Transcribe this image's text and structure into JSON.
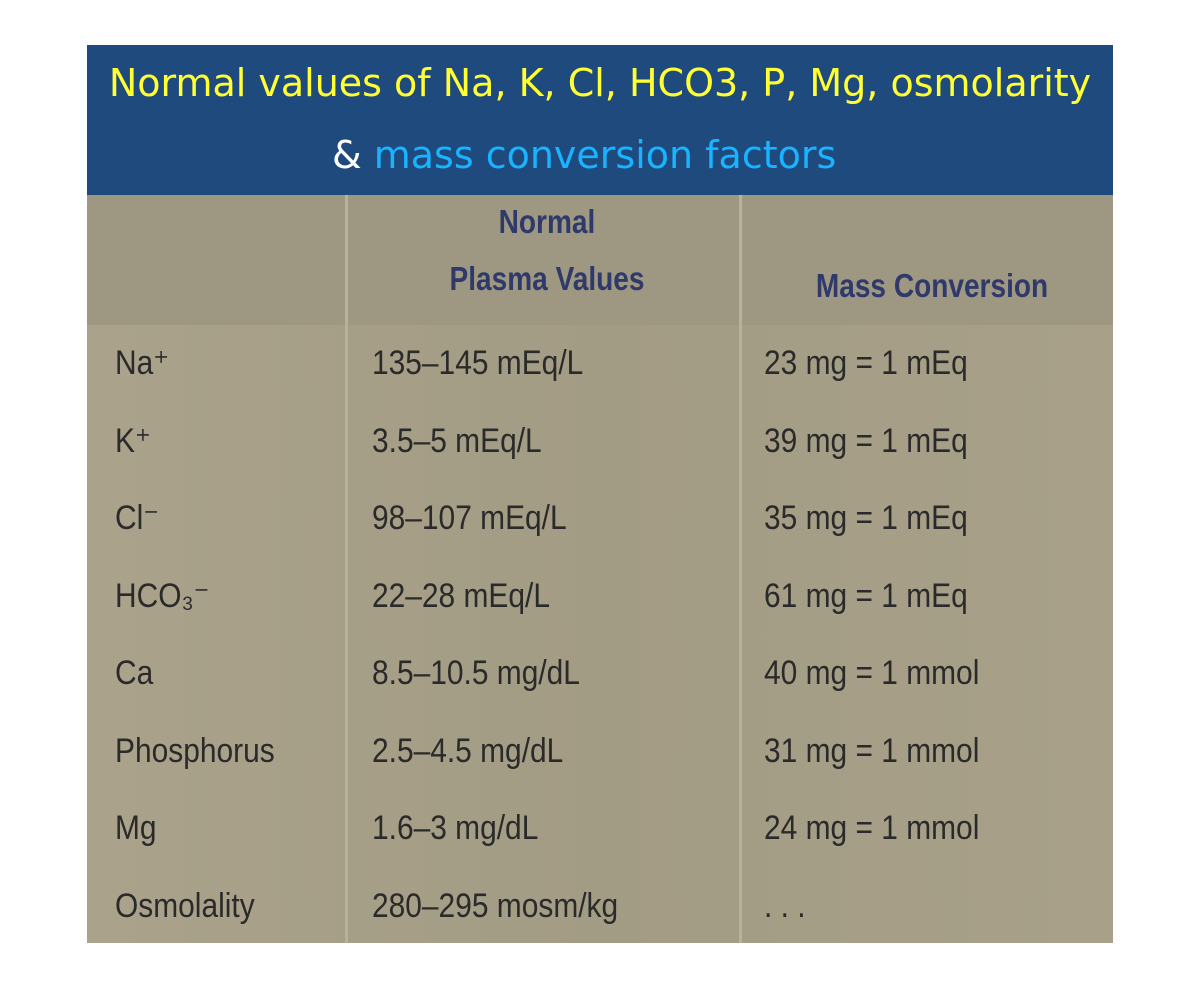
{
  "title": {
    "line1": "Normal values of Na, K, Cl, HCO3, P, Mg, osmolarity",
    "line2_prefix": "& ",
    "line2_highlight": "mass conversion factors"
  },
  "table": {
    "headers": [
      [
        "Normal",
        "Plasma Values"
      ],
      "Mass Conversion"
    ],
    "rows": [
      [
        "Na⁺",
        "135–145 mEq/L",
        "23 mg = 1 mEq"
      ],
      [
        "K⁺",
        "3.5–5 mEq/L",
        "39 mg = 1 mEq"
      ],
      [
        "Cl⁻",
        "98–107 mEq/L",
        "35 mg = 1 mEq"
      ],
      [
        "HCO₃⁻",
        "22–28 mEq/L",
        "61 mg = 1 mEq"
      ],
      [
        "Ca",
        "8.5–10.5 mg/dL",
        "40 mg = 1 mmol"
      ],
      [
        "Phosphorus",
        "2.5–4.5 mg/dL",
        "31 mg = 1 mmol"
      ],
      [
        "Mg",
        "1.6–3 mg/dL",
        "24 mg = 1 mmol"
      ],
      [
        "Osmolality",
        "280–295 mosm/kg",
        ". . ."
      ]
    ]
  }
}
